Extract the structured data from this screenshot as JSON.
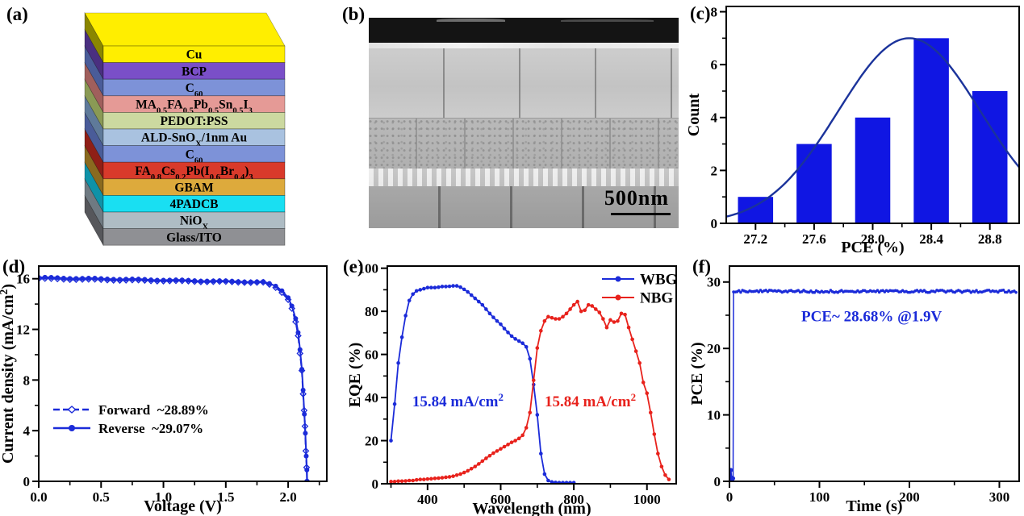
{
  "panels": {
    "a": {
      "tag": "(a)",
      "layers": [
        {
          "label": "Cu",
          "face": "#ffee00",
          "side": "#8a8600"
        },
        {
          "label": "BCP",
          "face": "#7a4fc8",
          "side": "#4a2f80"
        },
        {
          "label": "C_{60}",
          "face": "#7d92d8",
          "side": "#4a5c99"
        },
        {
          "label": "MA_{0.5}FA_{0.5}Pb_{0.5}Sn_{0.5}I_{3}",
          "face": "#e59a96",
          "side": "#a05f5c"
        },
        {
          "label": "PEDOT:PSS",
          "face": "#ccd9a0",
          "side": "#8a9a55"
        },
        {
          "label": "ALD-SnO_{X}/1nm Au",
          "face": "#a9c2e0",
          "side": "#5f7a9a"
        },
        {
          "label": "C_{60}",
          "face": "#7d92d8",
          "side": "#4a5c99"
        },
        {
          "label": "FA_{0.8}Cs_{0.2}Pb(I_{0.6}Br_{0.4})_{3}",
          "face": "#d93a2b",
          "side": "#8f1f17"
        },
        {
          "label": "GBAM",
          "face": "#ddaa3c",
          "side": "#8a6a1f"
        },
        {
          "label": "4PADCB",
          "face": "#19dff2",
          "side": "#0f92a8"
        },
        {
          "label": "NiO_{X}",
          "face": "#aebcc4",
          "side": "#6f7a82"
        },
        {
          "label": "Glass/ITO",
          "face": "#8f9094",
          "side": "#56575b"
        }
      ]
    },
    "b": {
      "tag": "(b)",
      "scale_bar": "500nm"
    },
    "c": {
      "tag": "(c)"
    },
    "d": {
      "tag": "(d)"
    },
    "e": {
      "tag": "(e)"
    },
    "f": {
      "tag": "(f)"
    }
  },
  "chart_data": [
    {
      "panel": "c",
      "type": "bar",
      "xlabel": "PCE (%)",
      "ylabel": "Count",
      "categories": [
        27.2,
        27.6,
        28.0,
        28.4,
        28.8
      ],
      "values": [
        1,
        3,
        4,
        7,
        5
      ],
      "bar_color": "#1016e3",
      "bar_width": 0.24,
      "fit_curve": {
        "type": "gaussian",
        "amplitude": 7,
        "mean": 28.25,
        "sigma": 0.485,
        "color": "#1b339b"
      },
      "xlim": [
        27.0,
        29.0
      ],
      "ylim": [
        0,
        8.2
      ],
      "xticks": {
        "values": [
          27.2,
          27.6,
          28.0,
          28.4,
          28.8
        ],
        "labels": [
          "27.2",
          "27.6",
          "28.0",
          "28.4",
          "28.8"
        ]
      },
      "yticks": {
        "values": [
          0,
          2,
          4,
          6,
          8
        ],
        "labels": [
          "0",
          "2",
          "4",
          "6",
          "8"
        ]
      },
      "xminor": [
        27.4,
        27.8,
        28.2,
        28.6
      ],
      "yminor": [
        1,
        3,
        5,
        7
      ]
    },
    {
      "panel": "d",
      "type": "line",
      "xlabel": "Voltage (V)",
      "ylabel": "Current density (mA/cm^{2})",
      "xlim": [
        0,
        2.31
      ],
      "ylim": [
        0,
        17
      ],
      "xticks": {
        "values": [
          0,
          0.5,
          1,
          1.5,
          2
        ],
        "labels": [
          "0.0",
          "0.5",
          "1.0",
          "1.5",
          "2.0"
        ]
      },
      "yticks": {
        "values": [
          0,
          4,
          8,
          12,
          16
        ],
        "labels": [
          "0",
          "4",
          "8",
          "12",
          "16"
        ]
      },
      "xminor": [
        0.25,
        0.75,
        1.25,
        1.75,
        2.25
      ],
      "yminor": [
        2,
        6,
        10,
        14
      ],
      "series": [
        {
          "name": "Forward",
          "label": "Forward  ~28.89%",
          "color": "#1b2bd9",
          "line": "dashed",
          "marker": "diamond-open",
          "flat": {
            "v_start": 0,
            "v_end": 1.8,
            "step": 0.05,
            "j_start": 16.0,
            "j_end": 15.7
          },
          "drop": [
            [
              1.85,
              15.55
            ],
            [
              1.9,
              15.3
            ],
            [
              1.95,
              14.9
            ],
            [
              2.0,
              14.35
            ],
            [
              2.03,
              13.65
            ],
            [
              2.06,
              12.6
            ],
            [
              2.08,
              11.5
            ],
            [
              2.095,
              10.1
            ],
            [
              2.11,
              8.75
            ],
            [
              2.12,
              6.9
            ],
            [
              2.128,
              5.6
            ],
            [
              2.135,
              4.35
            ],
            [
              2.142,
              2.4
            ],
            [
              2.148,
              1.1
            ],
            [
              2.151,
              0
            ]
          ]
        },
        {
          "name": "Reverse",
          "label": "Reverse  ~29.07%",
          "color": "#1b2bd9",
          "line": "solid",
          "marker": "circle",
          "flat": {
            "v_start": 0,
            "v_end": 1.8,
            "step": 0.05,
            "j_start": 16.1,
            "j_end": 15.75
          },
          "drop": [
            [
              1.85,
              15.62
            ],
            [
              1.9,
              15.42
            ],
            [
              1.95,
              15.05
            ],
            [
              2.0,
              14.5
            ],
            [
              2.03,
              13.85
            ],
            [
              2.06,
              12.85
            ],
            [
              2.08,
              11.75
            ],
            [
              2.095,
              10.4
            ],
            [
              2.11,
              8.85
            ],
            [
              2.12,
              7.2
            ],
            [
              2.13,
              5.3
            ],
            [
              2.138,
              3.8
            ],
            [
              2.145,
              2.0
            ],
            [
              2.15,
              0.9
            ],
            [
              2.153,
              0
            ]
          ]
        }
      ]
    },
    {
      "panel": "e",
      "type": "line",
      "xlabel": "Wavelength (nm)",
      "ylabel": "EQE (%)",
      "xlim": [
        290,
        1080
      ],
      "ylim": [
        0,
        101
      ],
      "xticks": {
        "values": [
          400,
          600,
          800,
          1000
        ],
        "labels": [
          "400",
          "600",
          "800",
          "1000"
        ]
      },
      "yticks": {
        "values": [
          0,
          20,
          40,
          60,
          80,
          100
        ],
        "labels": [
          "0",
          "20",
          "40",
          "60",
          "80",
          "100"
        ]
      },
      "xminor": [
        300,
        500,
        700,
        900
      ],
      "yminor": [
        10,
        30,
        50,
        70,
        90
      ],
      "series": [
        {
          "name": "WBG",
          "color": "#1b2bd9",
          "marker": "circle",
          "start": 300,
          "step": 10,
          "values": [
            20,
            37,
            56,
            68,
            78,
            85,
            88,
            89.5,
            90,
            90.5,
            91,
            91,
            91,
            91.2,
            91.5,
            91.5,
            91.6,
            91.8,
            91.8,
            91.2,
            90.2,
            89,
            87.5,
            86,
            84.5,
            83,
            81,
            79,
            77.2,
            75.5,
            74,
            72,
            70.2,
            68.5,
            67.2,
            66.2,
            65.2,
            63.5,
            58,
            46,
            32,
            14,
            4.5,
            1.5,
            0.8,
            0.6,
            0.5,
            0.5,
            0.5,
            0.5,
            0.5
          ]
        },
        {
          "name": "NBG",
          "color": "#e8221c",
          "marker": "circle",
          "start": 300,
          "step": 10,
          "values": [
            1,
            1,
            1.2,
            1.2,
            1.3,
            1.5,
            1.5,
            1.8,
            2,
            2,
            2.2,
            2.3,
            2.5,
            2.6,
            2.8,
            3,
            3.2,
            3.5,
            4,
            4.5,
            5.2,
            6,
            7,
            8,
            9.2,
            10.5,
            11.8,
            13,
            14.2,
            15.2,
            16.2,
            17.2,
            18.2,
            19.2,
            20,
            21,
            22.5,
            26,
            33,
            48,
            63,
            71,
            75.5,
            77.5,
            77,
            76.5,
            76.5,
            77.5,
            79,
            81,
            83,
            84.5,
            80,
            80.5,
            83,
            82.5,
            81,
            79.5,
            76.5,
            72.5,
            76,
            75,
            75.5,
            79,
            78.5,
            72.5,
            67,
            61.5,
            56,
            47,
            42,
            33,
            23,
            14,
            8,
            4,
            2
          ]
        }
      ],
      "annotations": [
        {
          "text": "15.84 mA/cm^{2}",
          "wl": 483,
          "eqe": 36,
          "color": "#1b2bd9"
        },
        {
          "text": "15.84 mA/cm^{2}",
          "wl": 845,
          "eqe": 36,
          "color": "#e8221c"
        }
      ]
    },
    {
      "panel": "f",
      "type": "line",
      "xlabel": "Time (s)",
      "ylabel": "PCE (%)",
      "xlim": [
        0,
        322
      ],
      "ylim": [
        0,
        32.4
      ],
      "xticks": {
        "values": [
          0,
          100,
          200,
          300
        ],
        "labels": [
          "0",
          "100",
          "200",
          "300"
        ]
      },
      "yticks": {
        "values": [
          0,
          10,
          20,
          30
        ],
        "labels": [
          "0",
          "10",
          "20",
          "30"
        ]
      },
      "xminor": [
        50,
        150,
        250
      ],
      "yminor": [
        5,
        15,
        25
      ],
      "series": [
        {
          "name": "PCE",
          "color": "#1b2bd9",
          "spike": [
            [
              0.8,
              0.35
            ],
            [
              1.6,
              1.7
            ],
            [
              2.4,
              0.55
            ],
            [
              3.2,
              0.3
            ],
            [
              4.0,
              0.45
            ]
          ],
          "plateau": {
            "t_start": 4.5,
            "t_end": 320,
            "value": 28.6,
            "noise": 0.18,
            "step": 2
          }
        }
      ],
      "annotation": {
        "text": "PCE~ 28.68% @1.9V",
        "t": 158,
        "pce": 24.1,
        "color": "#1b2bd9"
      }
    }
  ]
}
